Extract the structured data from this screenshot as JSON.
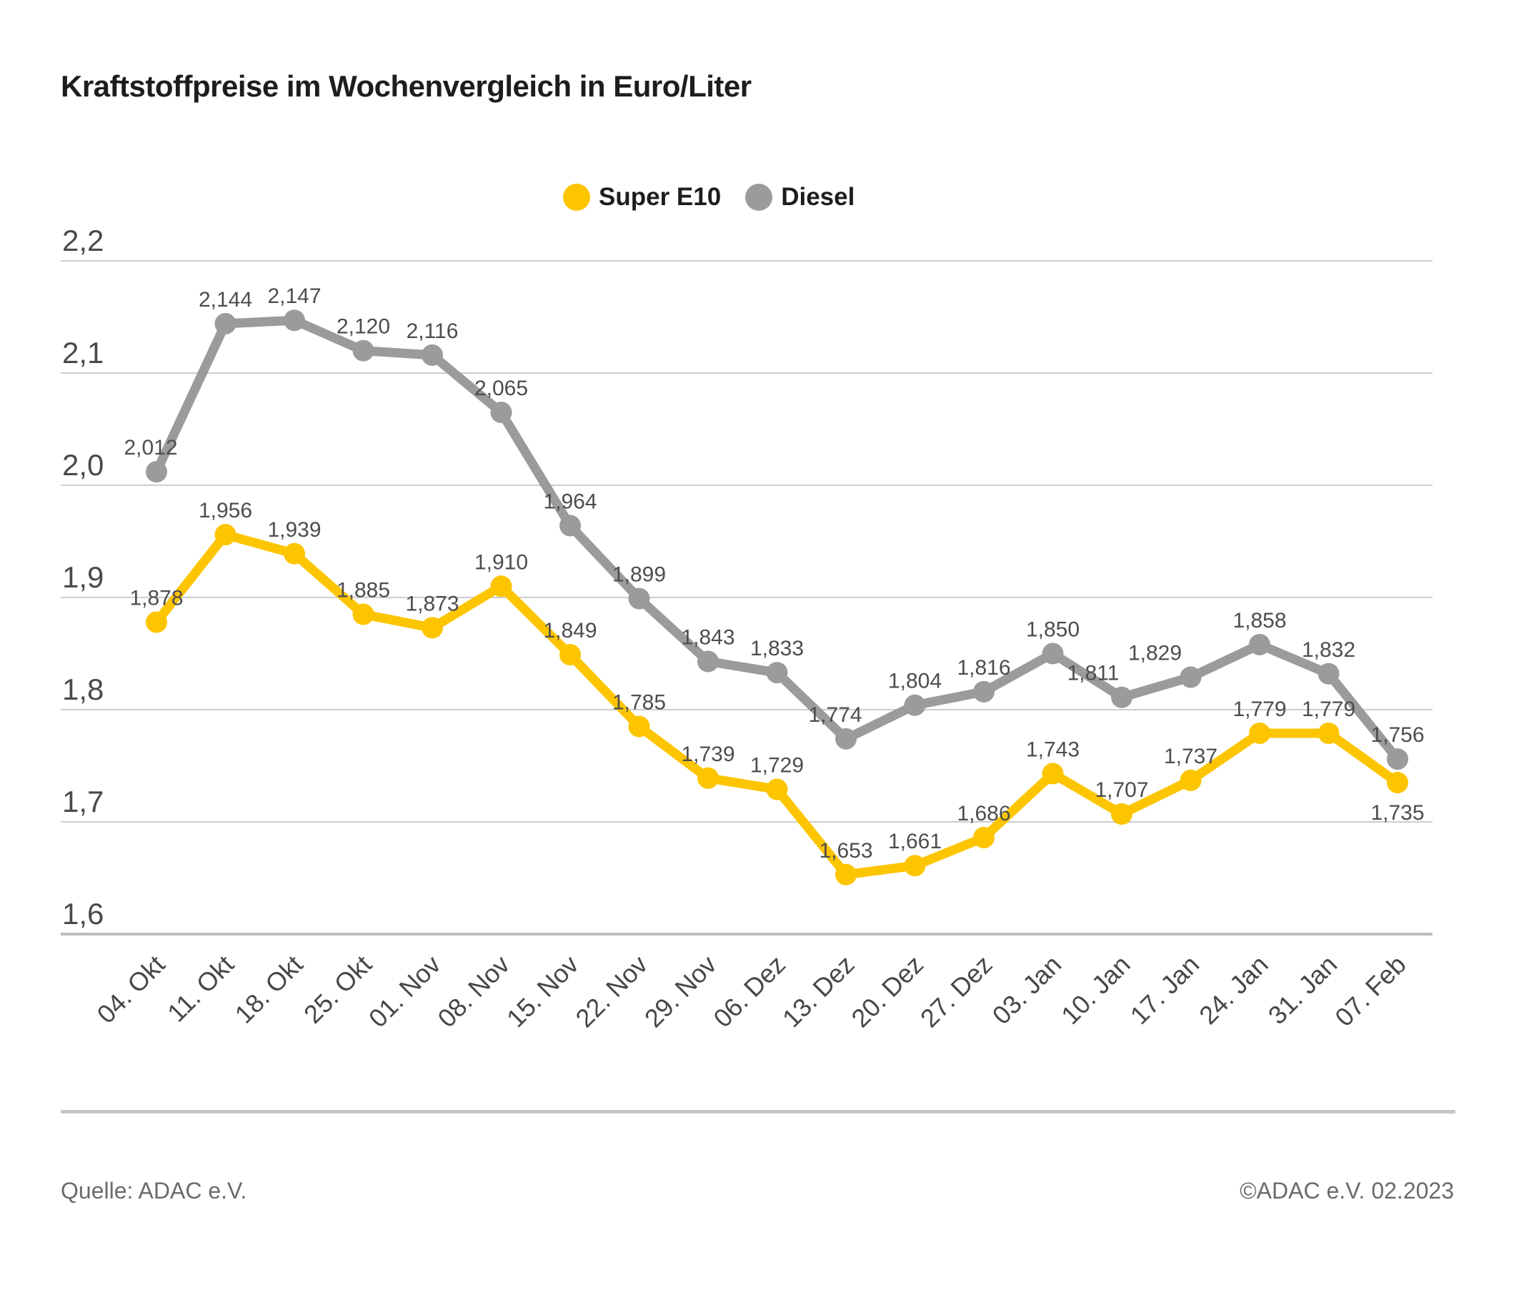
{
  "title": "Kraftstoffpreise im Wochenvergleich in Euro/Liter",
  "legend": [
    {
      "label": "Super E10",
      "color": "#FDC500"
    },
    {
      "label": "Diesel",
      "color": "#9B9B9B"
    }
  ],
  "chart_data": {
    "type": "line",
    "title": "Kraftstoffpreise im Wochenvergleich in Euro/Liter",
    "xlabel": "",
    "ylabel": "Euro/Liter",
    "ylim": [
      1.6,
      2.2
    ],
    "grid": true,
    "legend_position": "top-center",
    "yticks": [
      "2,2",
      "2,1",
      "2,0",
      "1,9",
      "1,8",
      "1,7",
      "1,6"
    ],
    "categories": [
      "04. Okt",
      "11. Okt",
      "18. Okt",
      "25. Okt",
      "01. Nov",
      "08. Nov",
      "15. Nov",
      "22. Nov",
      "29. Nov",
      "06. Dez",
      "13. Dez",
      "20. Dez",
      "27. Dez",
      "03. Jan",
      "10. Jan",
      "17. Jan",
      "24. Jan",
      "31. Jan",
      "07. Feb"
    ],
    "series": [
      {
        "name": "Super E10",
        "color": "#FDC500",
        "values": [
          1.878,
          1.956,
          1.939,
          1.885,
          1.873,
          1.91,
          1.849,
          1.785,
          1.739,
          1.729,
          1.653,
          1.661,
          1.686,
          1.743,
          1.707,
          1.737,
          1.779,
          1.779,
          1.735
        ],
        "labels": [
          "1,878",
          "1,956",
          "1,939",
          "1,885",
          "1,873",
          "1,910",
          "1,849",
          "1,785",
          "1,739",
          "1,729",
          "1,653",
          "1,661",
          "1,686",
          "1,743",
          "1,707",
          "1,737",
          "1,779",
          "1,779",
          "1,735"
        ]
      },
      {
        "name": "Diesel",
        "color": "#9B9B9B",
        "values": [
          2.012,
          2.144,
          2.147,
          2.12,
          2.116,
          2.065,
          1.964,
          1.899,
          1.843,
          1.833,
          1.774,
          1.804,
          1.816,
          1.85,
          1.811,
          1.829,
          1.858,
          1.832,
          1.756
        ],
        "labels": [
          "2,012",
          "2,144",
          "2,147",
          "2,120",
          "2,116",
          "2,065",
          "1,964",
          "1,899",
          "1,843",
          "1,833",
          "1,774",
          "1,804",
          "1,816",
          "1,850",
          "1,811",
          "1,829",
          "1,858",
          "1,832",
          "1,756"
        ]
      }
    ]
  },
  "footer": {
    "source": "Quelle: ADAC e.V.",
    "copyright": "©ADAC e.V. 02.2023"
  }
}
